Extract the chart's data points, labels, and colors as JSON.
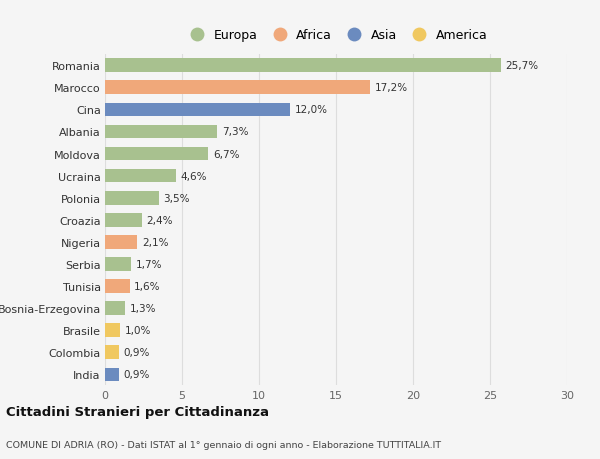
{
  "countries": [
    "Romania",
    "Marocco",
    "Cina",
    "Albania",
    "Moldova",
    "Ucraina",
    "Polonia",
    "Croazia",
    "Nigeria",
    "Serbia",
    "Tunisia",
    "Bosnia-Erzegovina",
    "Brasile",
    "Colombia",
    "India"
  ],
  "values": [
    25.7,
    17.2,
    12.0,
    7.3,
    6.7,
    4.6,
    3.5,
    2.4,
    2.1,
    1.7,
    1.6,
    1.3,
    1.0,
    0.9,
    0.9
  ],
  "labels": [
    "25,7%",
    "17,2%",
    "12,0%",
    "7,3%",
    "6,7%",
    "4,6%",
    "3,5%",
    "2,4%",
    "2,1%",
    "1,7%",
    "1,6%",
    "1,3%",
    "1,0%",
    "0,9%",
    "0,9%"
  ],
  "continents": [
    "Europa",
    "Africa",
    "Asia",
    "Europa",
    "Europa",
    "Europa",
    "Europa",
    "Europa",
    "Africa",
    "Europa",
    "Africa",
    "Europa",
    "America",
    "America",
    "Asia"
  ],
  "colors": {
    "Europa": "#a8c18f",
    "Africa": "#f0a87a",
    "Asia": "#6b8bbf",
    "America": "#f0c860"
  },
  "legend_order": [
    "Europa",
    "Africa",
    "Asia",
    "America"
  ],
  "title": "Cittadini Stranieri per Cittadinanza",
  "subtitle": "COMUNE DI ADRIA (RO) - Dati ISTAT al 1° gennaio di ogni anno - Elaborazione TUTTITALIA.IT",
  "xlim": [
    0,
    30
  ],
  "xticks": [
    0,
    5,
    10,
    15,
    20,
    25,
    30
  ],
  "background_color": "#f5f5f5",
  "grid_color": "#dddddd"
}
